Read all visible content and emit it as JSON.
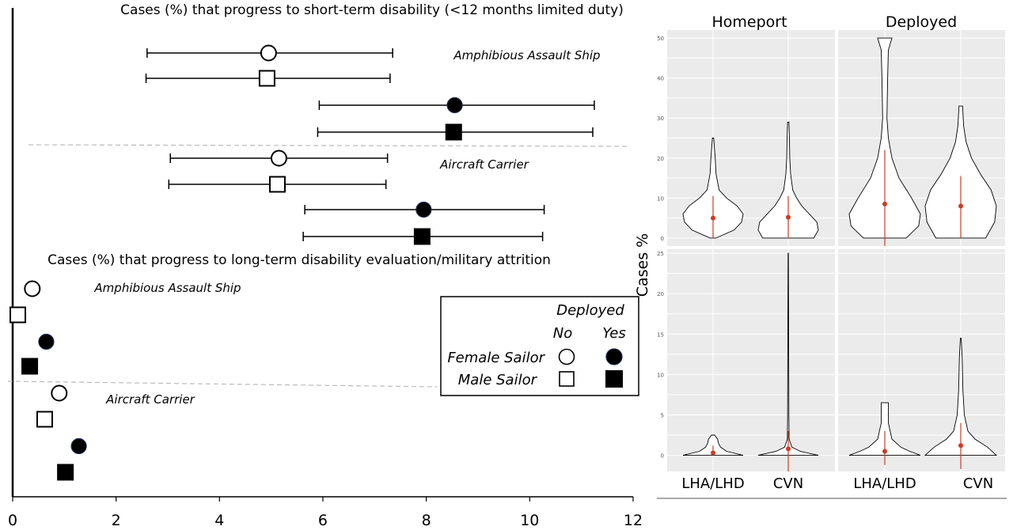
{
  "chart_data": [
    {
      "type": "scatter",
      "title": "Cases (%) that progress to short-term disability (<12 months limited duty)",
      "xlim": [
        0,
        12
      ],
      "x_ticks": [
        0,
        2,
        4,
        6,
        8,
        10,
        12
      ],
      "groups": [
        {
          "label": "Amphibious Assault Ship",
          "points": [
            {
              "series": "Female Sailor",
              "deployed": "No",
              "value": 4.95,
              "low": 2.6,
              "high": 7.35
            },
            {
              "series": "Male Sailor",
              "deployed": "No",
              "value": 4.92,
              "low": 2.58,
              "high": 7.3
            },
            {
              "series": "Female Sailor",
              "deployed": "Yes",
              "value": 8.55,
              "low": 5.93,
              "high": 11.25
            },
            {
              "series": "Male Sailor",
              "deployed": "Yes",
              "value": 8.53,
              "low": 5.9,
              "high": 11.22
            }
          ]
        },
        {
          "label": "Aircraft Carrier",
          "points": [
            {
              "series": "Female Sailor",
              "deployed": "No",
              "value": 5.15,
              "low": 3.05,
              "high": 7.25
            },
            {
              "series": "Male Sailor",
              "deployed": "No",
              "value": 5.12,
              "low": 3.02,
              "high": 7.22
            },
            {
              "series": "Female Sailor",
              "deployed": "Yes",
              "value": 7.95,
              "low": 5.65,
              "high": 10.28
            },
            {
              "series": "Male Sailor",
              "deployed": "Yes",
              "value": 7.92,
              "low": 5.62,
              "high": 10.25
            }
          ]
        }
      ]
    },
    {
      "type": "scatter",
      "title": "Cases (%) that progress to long-term disability evaluation/military attrition",
      "xlim": [
        0,
        12
      ],
      "groups": [
        {
          "label": "Amphibious Assault Ship",
          "points": [
            {
              "series": "Female Sailor",
              "deployed": "No",
              "value": 0.38
            },
            {
              "series": "Male Sailor",
              "deployed": "No",
              "value": 0.1
            },
            {
              "series": "Female Sailor",
              "deployed": "Yes",
              "value": 0.65
            },
            {
              "series": "Male Sailor",
              "deployed": "Yes",
              "value": 0.33
            }
          ]
        },
        {
          "label": "Aircraft Carrier",
          "points": [
            {
              "series": "Female Sailor",
              "deployed": "No",
              "value": 0.9
            },
            {
              "series": "Male Sailor",
              "deployed": "No",
              "value": 0.62
            },
            {
              "series": "Female Sailor",
              "deployed": "Yes",
              "value": 1.28
            },
            {
              "series": "Male Sailor",
              "deployed": "Yes",
              "value": 1.02
            }
          ]
        }
      ]
    },
    {
      "type": "violin",
      "ylabel": "Cases %",
      "column_labels": [
        "Homeport",
        "Deployed"
      ],
      "row_labels": [],
      "x_categories": [
        "LHA/LHD",
        "CVN"
      ],
      "panels": [
        {
          "column": "Homeport",
          "row": 1,
          "ylim": [
            -2,
            52
          ],
          "y_ticks": [
            0,
            10,
            20,
            30,
            40,
            50
          ],
          "violins": [
            {
              "category": "LHA/LHD",
              "min": 0,
              "max": 25,
              "mean": 5,
              "error_low": 0,
              "error_high": 10.5,
              "profile": [
                [
                  0,
                  0.1
                ],
                [
                  2,
                  0.7
                ],
                [
                  4,
                  0.95
                ],
                [
                  6,
                  1.0
                ],
                [
                  8,
                  0.8
                ],
                [
                  10,
                  0.45
                ],
                [
                  12,
                  0.2
                ],
                [
                  16,
                  0.1
                ],
                [
                  20,
                  0.07
                ],
                [
                  25,
                  0.02
                ]
              ]
            },
            {
              "category": "CVN",
              "min": 0,
              "max": 29,
              "mean": 5.2,
              "error_low": 0,
              "error_high": 10.5,
              "profile": [
                [
                  0,
                  0.85
                ],
                [
                  2,
                  1.0
                ],
                [
                  4,
                  0.95
                ],
                [
                  6,
                  0.7
                ],
                [
                  8,
                  0.45
                ],
                [
                  10,
                  0.28
                ],
                [
                  12,
                  0.15
                ],
                [
                  16,
                  0.08
                ],
                [
                  20,
                  0.05
                ],
                [
                  25,
                  0.04
                ],
                [
                  29,
                  0.02
                ]
              ]
            }
          ]
        },
        {
          "column": "Deployed",
          "row": 1,
          "ylim": [
            -2,
            52
          ],
          "y_ticks": [
            0,
            10,
            20,
            30,
            40,
            50
          ],
          "violins": [
            {
              "category": "LHA/LHD",
              "min": 0,
              "max": 50,
              "mean": 8.5,
              "error_low": -5,
              "error_high": 22,
              "profile": [
                [
                  0,
                  0.6
                ],
                [
                  3,
                  0.95
                ],
                [
                  6,
                  1.0
                ],
                [
                  10,
                  0.75
                ],
                [
                  15,
                  0.4
                ],
                [
                  20,
                  0.2
                ],
                [
                  25,
                  0.1
                ],
                [
                  30,
                  0.06
                ],
                [
                  40,
                  0.08
                ],
                [
                  47,
                  0.1
                ],
                [
                  50,
                  0.2
                ]
              ]
            },
            {
              "category": "CVN",
              "min": 0,
              "max": 33,
              "mean": 8,
              "error_low": 0,
              "error_high": 15.5,
              "profile": [
                [
                  0,
                  0.7
                ],
                [
                  4,
                  0.95
                ],
                [
                  8,
                  1.0
                ],
                [
                  12,
                  0.85
                ],
                [
                  16,
                  0.55
                ],
                [
                  20,
                  0.3
                ],
                [
                  24,
                  0.15
                ],
                [
                  28,
                  0.08
                ],
                [
                  33,
                  0.05
                ]
              ]
            }
          ]
        },
        {
          "column": "Homeport",
          "row": 2,
          "ylim": [
            -2,
            25.5
          ],
          "y_ticks": [
            0,
            5,
            10,
            15,
            20,
            25
          ],
          "violins": [
            {
              "category": "LHA/LHD",
              "min": 0,
              "max": 2.5,
              "mean": 0.3,
              "error_low": 0,
              "error_high": 1.2,
              "profile": [
                [
                  0,
                  1.0
                ],
                [
                  0.5,
                  0.45
                ],
                [
                  1,
                  0.25
                ],
                [
                  1.5,
                  0.18
                ],
                [
                  2,
                  0.15
                ],
                [
                  2.5,
                  0.05
                ]
              ]
            },
            {
              "category": "CVN",
              "min": 0,
              "max": 25,
              "mean": 0.8,
              "error_low": -2,
              "error_high": 3,
              "profile": [
                [
                  0,
                  1.0
                ],
                [
                  0.5,
                  0.4
                ],
                [
                  1,
                  0.12
                ],
                [
                  2,
                  0.03
                ],
                [
                  5,
                  0.02
                ],
                [
                  25,
                  0.005
                ]
              ]
            }
          ]
        },
        {
          "column": "Deployed",
          "row": 2,
          "ylim": [
            -2,
            25.5
          ],
          "y_ticks": [
            0,
            5,
            10,
            15,
            20,
            25
          ],
          "violins": [
            {
              "category": "LHA/LHD",
              "min": 0,
              "max": 6.5,
              "mean": 0.5,
              "error_low": -1.2,
              "error_high": 3,
              "profile": [
                [
                  0,
                  1.0
                ],
                [
                  0.5,
                  0.7
                ],
                [
                  1,
                  0.45
                ],
                [
                  2,
                  0.2
                ],
                [
                  4,
                  0.1
                ],
                [
                  5.5,
                  0.1
                ],
                [
                  6.5,
                  0.1
                ]
              ]
            },
            {
              "category": "CVN",
              "min": 0,
              "max": 14.5,
              "mean": 1.2,
              "error_low": -1.7,
              "error_high": 4,
              "profile": [
                [
                  0,
                  1.0
                ],
                [
                  1,
                  0.75
                ],
                [
                  2,
                  0.4
                ],
                [
                  3,
                  0.2
                ],
                [
                  5,
                  0.1
                ],
                [
                  8,
                  0.06
                ],
                [
                  12,
                  0.04
                ],
                [
                  14.5,
                  0.01
                ]
              ]
            }
          ]
        }
      ]
    }
  ],
  "legend": {
    "title": "Deployed",
    "no_label": "No",
    "yes_label": "Yes",
    "female_label": "Female Sailor",
    "male_label": "Male Sailor"
  },
  "colors": {
    "marker": "#000000",
    "panel_bg": "#ebebeb",
    "violin_fill": "#ffffff",
    "mean_point": "#d03a22",
    "divider": "#bbbbbb"
  }
}
